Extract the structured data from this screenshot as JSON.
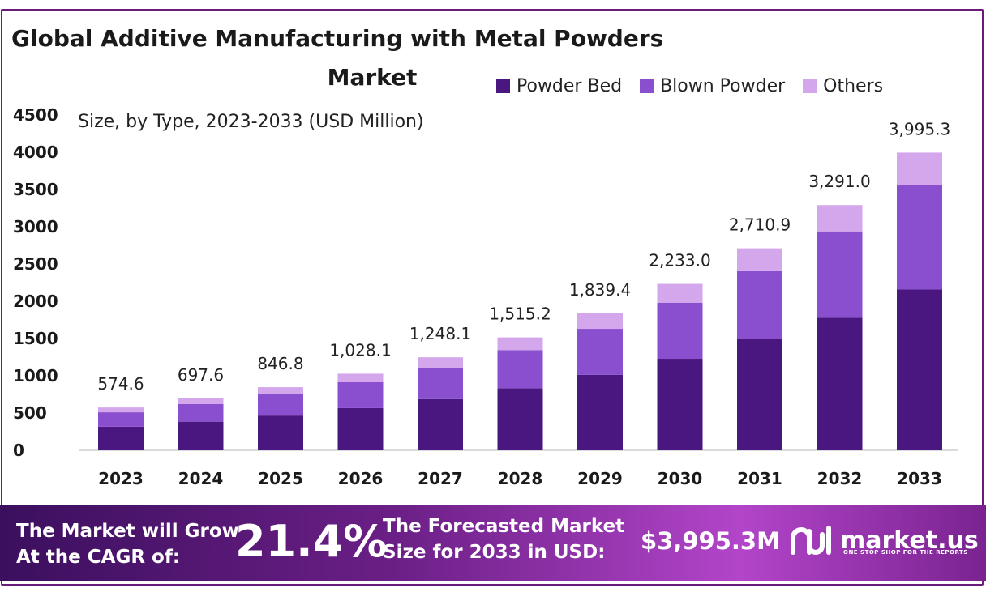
{
  "chart_data": {
    "type": "bar",
    "stacked": true,
    "title": "Global Additive Manufacturing with Metal Powders Market",
    "title_line1": "Global Additive Manufacturing with Metal Powders",
    "title_line2": "Market",
    "subtitle": "Size, by Type, 2023-2033 (USD Million)",
    "categories": [
      "2023",
      "2024",
      "2025",
      "2026",
      "2027",
      "2028",
      "2029",
      "2030",
      "2031",
      "2032",
      "2033"
    ],
    "series": [
      {
        "name": "Powder Bed",
        "color": "#4a1680",
        "values": [
          317,
          384,
          466,
          566,
          687,
          833,
          1012,
          1228,
          1490,
          1778,
          2158
        ]
      },
      {
        "name": "Blown Powder",
        "color": "#8a4fcf",
        "values": [
          193,
          236,
          286,
          347,
          422,
          512,
          618,
          753,
          914,
          1160,
          1398
        ]
      },
      {
        "name": "Others",
        "color": "#d4a6ec",
        "values": [
          64.6,
          77.6,
          94.8,
          115.1,
          139.1,
          170.2,
          209.4,
          252.0,
          306.9,
          353.0,
          439.3
        ]
      }
    ],
    "totals": [
      574.6,
      697.6,
      846.8,
      1028.1,
      1248.1,
      1515.2,
      1839.4,
      2233.0,
      2710.9,
      3291.0,
      3995.3
    ],
    "total_labels": [
      "574.6",
      "697.6",
      "846.8",
      "1,028.1",
      "1,248.1",
      "1,515.2",
      "1,839.4",
      "2,233.0",
      "2,710.9",
      "3,291.0",
      "3,995.3"
    ],
    "y_ticks": [
      "0",
      "500",
      "1000",
      "1500",
      "2000",
      "2500",
      "3000",
      "3500",
      "4000",
      "4500"
    ],
    "ylim": [
      0,
      4500
    ],
    "grid": false,
    "legend_position": "top-right"
  },
  "banner": {
    "cagr_label": "The Market will Grow\nAt the CAGR of:",
    "cagr_value": "21.4%",
    "forecast_label": "The Forecasted Market\nSize for 2033 in USD:",
    "forecast_value": "$3,995.3M",
    "logo_text": "market.us",
    "logo_tagline": "ONE STOP SHOP FOR THE REPORTS"
  }
}
